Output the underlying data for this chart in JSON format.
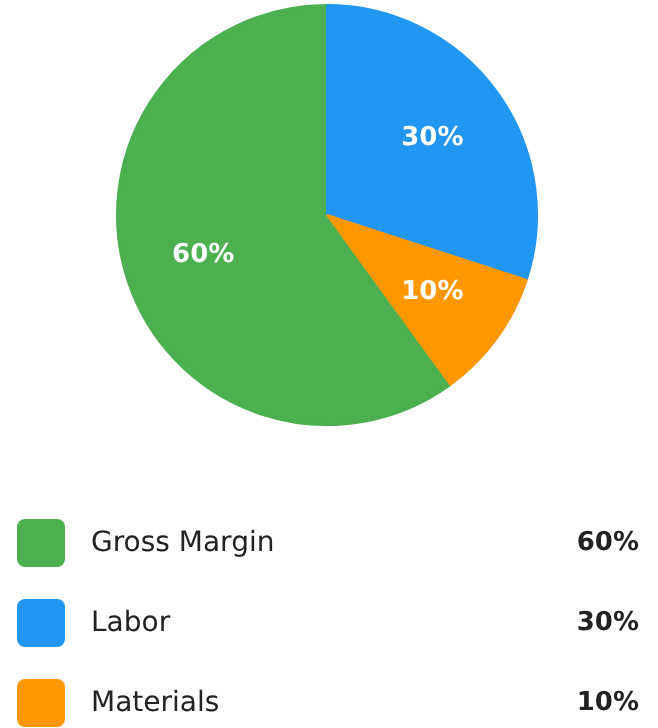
{
  "chart_data": {
    "type": "pie",
    "categories": [
      "Gross Margin",
      "Labor",
      "Materials"
    ],
    "values": [
      60,
      30,
      10
    ],
    "value_labels": [
      "60%",
      "30%",
      "10%"
    ],
    "colors": [
      "#4caf50",
      "#2196f3",
      "#ff9800"
    ],
    "legend": "bottom"
  }
}
